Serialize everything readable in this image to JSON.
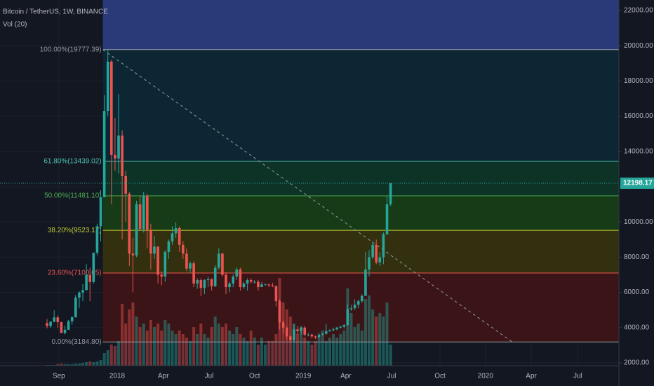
{
  "chart_data": {
    "type": "candlestick",
    "title": "Bitcoin / TetherUS, 1W, BINANCE",
    "subtitle": "Vol (20)",
    "up_color": "#26a69a",
    "down_color": "#ef5350",
    "ohlc": [
      [
        4260,
        4480,
        3960,
        4090
      ],
      [
        4090,
        4370,
        3980,
        4330
      ],
      [
        4330,
        4980,
        4300,
        4580
      ],
      [
        4580,
        4690,
        4000,
        4310
      ],
      [
        4310,
        4330,
        3700,
        3690
      ],
      [
        3690,
        4120,
        3610,
        3880
      ],
      [
        3880,
        4430,
        3870,
        4360
      ],
      [
        4360,
        4610,
        4170,
        4600
      ],
      [
        4600,
        5850,
        4560,
        5700
      ],
      [
        5700,
        6070,
        5100,
        5990
      ],
      [
        5990,
        6470,
        5500,
        6130
      ],
      [
        6130,
        7600,
        6100,
        6990
      ],
      [
        6990,
        7400,
        5500,
        6590
      ],
      [
        6590,
        8250,
        6500,
        8250
      ],
      [
        8250,
        9900,
        8100,
        9750
      ],
      [
        9750,
        11800,
        8900,
        11400
      ],
      [
        11400,
        17200,
        11400,
        16300
      ],
      [
        16300,
        19777.39,
        16000,
        19100
      ],
      [
        19100,
        19200,
        11000,
        13800
      ],
      [
        13800,
        15900,
        12900,
        13600
      ],
      [
        13600,
        17250,
        12750,
        14900
      ],
      [
        14900,
        15200,
        9000,
        12600
      ],
      [
        12600,
        12900,
        10000,
        11600
      ],
      [
        11600,
        11700,
        7500,
        8200
      ],
      [
        8200,
        9100,
        6000,
        8100
      ],
      [
        8100,
        11200,
        8000,
        11000
      ],
      [
        11000,
        11500,
        9500,
        9600
      ],
      [
        9600,
        11700,
        9400,
        11500
      ],
      [
        11500,
        11600,
        8500,
        9500
      ],
      [
        9500,
        9900,
        7300,
        8200
      ],
      [
        8200,
        9200,
        7900,
        8600
      ],
      [
        8600,
        8600,
        6500,
        7000
      ],
      [
        7000,
        7200,
        6400,
        6900
      ],
      [
        6900,
        8400,
        6600,
        8300
      ],
      [
        8300,
        9000,
        7900,
        8900
      ],
      [
        8900,
        9750,
        8700,
        9350
      ],
      [
        9350,
        9990,
        9100,
        9650
      ],
      [
        9650,
        9750,
        8300,
        8700
      ],
      [
        8700,
        8900,
        7900,
        8200
      ],
      [
        8200,
        8500,
        7200,
        7350
      ],
      [
        7350,
        7750,
        7100,
        7650
      ],
      [
        7650,
        7750,
        6300,
        6500
      ],
      [
        6500,
        6800,
        6200,
        6700
      ],
      [
        6700,
        6800,
        5800,
        6250
      ],
      [
        6250,
        6750,
        5900,
        6700
      ],
      [
        6700,
        6900,
        6300,
        6750
      ],
      [
        6750,
        6800,
        6100,
        6350
      ],
      [
        6350,
        7550,
        6300,
        7400
      ],
      [
        7400,
        8500,
        7300,
        8200
      ],
      [
        8200,
        8250,
        6900,
        7000
      ],
      [
        7000,
        7150,
        5900,
        6300
      ],
      [
        6300,
        6600,
        6000,
        6500
      ],
      [
        6500,
        7000,
        6300,
        6900
      ],
      [
        6900,
        7400,
        6700,
        7300
      ],
      [
        7300,
        7400,
        6100,
        6300
      ],
      [
        6300,
        6600,
        6200,
        6500
      ],
      [
        6500,
        6800,
        6100,
        6700
      ],
      [
        6700,
        6800,
        6500,
        6600
      ],
      [
        6600,
        6700,
        6500,
        6600
      ],
      [
        6600,
        6700,
        6100,
        6300
      ],
      [
        6300,
        6600,
        6300,
        6450
      ],
      [
        6450,
        6500,
        6400,
        6450
      ],
      [
        6450,
        6500,
        6300,
        6400
      ],
      [
        6400,
        6550,
        6300,
        6350
      ],
      [
        6350,
        6400,
        5200,
        5500
      ],
      [
        5500,
        5600,
        3900,
        4300
      ],
      [
        4300,
        4400,
        3700,
        4000
      ],
      [
        4000,
        4100,
        3300,
        3500
      ],
      [
        3500,
        3600,
        3184.8,
        3300
      ],
      [
        3300,
        4200,
        3200,
        3900
      ],
      [
        3900,
        4100,
        3600,
        3800
      ],
      [
        3800,
        4100,
        3600,
        4000
      ],
      [
        4000,
        4100,
        3500,
        3600
      ],
      [
        3600,
        3700,
        3500,
        3600
      ],
      [
        3600,
        3650,
        3400,
        3500
      ],
      [
        3500,
        3550,
        3350,
        3450
      ],
      [
        3450,
        3700,
        3400,
        3600
      ],
      [
        3600,
        3700,
        3550,
        3650
      ],
      [
        3650,
        4200,
        3600,
        3800
      ],
      [
        3800,
        3900,
        3750,
        3850
      ],
      [
        3850,
        4000,
        3800,
        3900
      ],
      [
        3900,
        4050,
        3850,
        4000
      ],
      [
        4000,
        4100,
        3950,
        4050
      ],
      [
        4050,
        4200,
        3950,
        4150
      ],
      [
        4150,
        5300,
        4100,
        5050
      ],
      [
        5050,
        5300,
        4950,
        5100
      ],
      [
        5100,
        5600,
        5000,
        5300
      ],
      [
        5300,
        5600,
        5100,
        5500
      ],
      [
        5500,
        5900,
        5400,
        5800
      ],
      [
        5800,
        8300,
        5800,
        7300
      ],
      [
        7300,
        8400,
        6900,
        8000
      ],
      [
        8000,
        8900,
        7900,
        8700
      ],
      [
        8700,
        9000,
        7600,
        7700
      ],
      [
        7700,
        8300,
        7500,
        8000
      ],
      [
        8000,
        9400,
        7600,
        9300
      ],
      [
        9300,
        11500,
        9250,
        11000
      ],
      [
        11000,
        12198.17,
        10900,
        12198.17
      ]
    ],
    "volume": [
      1,
      1,
      1,
      2,
      3,
      2,
      2,
      2,
      3,
      3,
      4,
      5,
      6,
      5,
      6,
      8,
      18,
      22,
      30,
      28,
      35,
      88,
      60,
      80,
      90,
      70,
      55,
      60,
      50,
      65,
      55,
      60,
      50,
      65,
      60,
      50,
      45,
      50,
      45,
      40,
      35,
      55,
      45,
      60,
      45,
      40,
      55,
      70,
      60,
      55,
      60,
      50,
      45,
      55,
      45,
      40,
      35,
      50,
      40,
      30,
      40,
      30,
      35,
      35,
      45,
      125,
      90,
      80,
      70,
      60,
      45,
      55,
      40,
      35,
      30,
      35,
      40,
      50,
      35,
      40,
      45,
      40,
      45,
      50,
      110,
      75,
      55,
      60,
      50,
      95,
      100,
      80,
      70,
      75,
      70,
      90,
      30
    ],
    "vlim": [
      0,
      130
    ],
    "ylim": [
      685,
      22598
    ],
    "yticks": [
      {
        "value": 2000,
        "label": "2000.00"
      },
      {
        "value": 4000,
        "label": "4000.00"
      },
      {
        "value": 6000,
        "label": "6000.00"
      },
      {
        "value": 8000,
        "label": "8000.00"
      },
      {
        "value": 10000,
        "label": "10000.00"
      },
      {
        "value": 12000,
        "label": "12000.00"
      },
      {
        "value": 14000,
        "label": "14000.00"
      },
      {
        "value": 16000,
        "label": "16000.00"
      },
      {
        "value": 18000,
        "label": "18000.00"
      },
      {
        "value": 20000,
        "label": "20000.00"
      },
      {
        "value": 22000,
        "label": "22000.00"
      }
    ],
    "xlim": [
      -13.14,
      159.8
    ],
    "xticks": [
      {
        "value": 3.3,
        "label": "Sep"
      },
      {
        "value": 19.6,
        "label": "2018"
      },
      {
        "value": 32.5,
        "label": "Apr"
      },
      {
        "value": 45.3,
        "label": "Jul"
      },
      {
        "value": 58.0,
        "label": "Oct"
      },
      {
        "value": 71.6,
        "label": "2019"
      },
      {
        "value": 83.5,
        "label": "Apr"
      },
      {
        "value": 96.3,
        "label": "Jul"
      },
      {
        "value": 109.8,
        "label": "Oct"
      },
      {
        "value": 122.5,
        "label": "2020"
      },
      {
        "value": 135.3,
        "label": "Apr"
      },
      {
        "value": 148.3,
        "label": "Jul"
      }
    ],
    "last_price": 12198.17,
    "last_price_color": "#26a69a",
    "fib_start": 16,
    "fib_top_fill": "#2a3a78",
    "fib_levels": [
      {
        "value": 19777.39,
        "label": "100.00%(19777.39)",
        "color": "#9598a1",
        "fill": "#0c2733"
      },
      {
        "value": 13439.02,
        "label": "61.80%(13439.02)",
        "color": "#4dc2b0",
        "fill": "#0d3327"
      },
      {
        "value": 11481.1,
        "label": "50.00%(11481.10)",
        "color": "#4caf50",
        "fill": "#163b16"
      },
      {
        "value": 9523.17,
        "label": "38.20%(9523.17)",
        "color": "#c0ca33",
        "fill": "#33300f"
      },
      {
        "value": 7100.65,
        "label": "23.60%(7100.65)",
        "color": "#ef5350",
        "fill": "#3a1416"
      },
      {
        "value": 3184.8,
        "label": "0.00%(3184.80)",
        "color": "#9598a1"
      }
    ]
  }
}
